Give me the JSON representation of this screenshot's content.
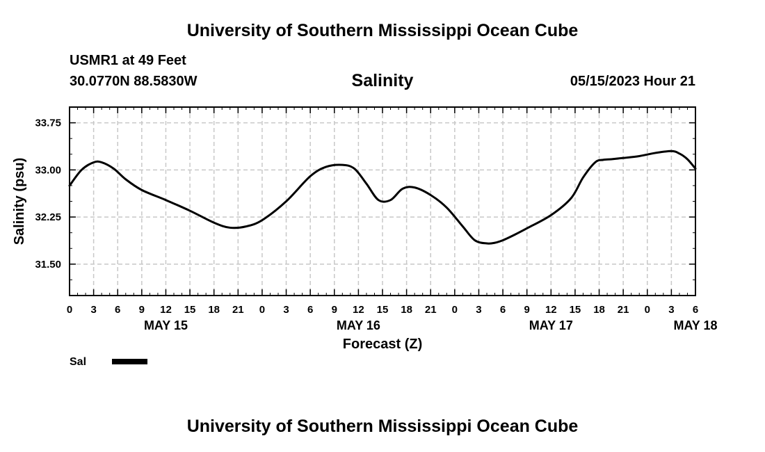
{
  "header": {
    "title": "University of Southern Mississippi Ocean Cube",
    "station": "USMR1 at 49 Feet",
    "coordinates": "30.0770N  88.5830W",
    "datetime": "05/15/2023 Hour 21"
  },
  "footer": {
    "title": "University of Southern Mississippi Ocean Cube"
  },
  "chart_data": {
    "type": "line",
    "title": "Salinity",
    "xlabel": "Forecast (Z)",
    "ylabel": "Salinity (psu)",
    "ylim": [
      31.0,
      34.0
    ],
    "yticks": [
      "31.50",
      "32.25",
      "33.00",
      "33.75"
    ],
    "ytick_values": [
      31.5,
      32.25,
      33.0,
      33.75
    ],
    "xlim_hours": [
      0,
      78
    ],
    "x_start": "May 15 00Z",
    "xtick_labels": [
      "0",
      "3",
      "6",
      "9",
      "12",
      "15",
      "18",
      "21",
      "0",
      "3",
      "6",
      "9",
      "12",
      "15",
      "18",
      "21",
      "0",
      "3",
      "6",
      "9",
      "12",
      "15",
      "18",
      "21",
      "0",
      "3",
      "6"
    ],
    "date_labels": [
      {
        "label": "MAY 15",
        "hour": 12
      },
      {
        "label": "MAY 16",
        "hour": 36
      },
      {
        "label": "MAY 17",
        "hour": 60
      },
      {
        "label": "MAY 18",
        "hour": 78
      }
    ],
    "grid": true,
    "legend": [
      {
        "name": "Sal",
        "color": "#000000"
      }
    ],
    "series": [
      {
        "name": "Sal",
        "color": "#000000",
        "x": [
          0,
          1.5,
          3,
          4,
          5.5,
          7,
          9,
          12,
          15,
          18,
          20,
          22,
          24,
          27,
          30,
          32,
          34,
          35.5,
          37,
          38.5,
          40,
          41.5,
          43,
          45,
          47,
          49,
          50.5,
          52,
          53,
          54,
          55.5,
          57,
          60,
          62.5,
          64,
          65.5,
          66.5,
          67.5,
          69,
          71,
          73,
          75,
          76,
          77,
          78
        ],
        "values": [
          32.75,
          33.0,
          33.12,
          33.12,
          33.02,
          32.85,
          32.68,
          32.52,
          32.35,
          32.16,
          32.08,
          32.1,
          32.2,
          32.5,
          32.9,
          33.05,
          33.08,
          33.02,
          32.78,
          32.52,
          32.52,
          32.7,
          32.72,
          32.6,
          32.4,
          32.1,
          31.88,
          31.83,
          31.84,
          31.88,
          31.97,
          32.07,
          32.28,
          32.55,
          32.88,
          33.12,
          33.16,
          33.17,
          33.19,
          33.22,
          33.27,
          33.3,
          33.26,
          33.17,
          33.02
        ]
      }
    ]
  }
}
